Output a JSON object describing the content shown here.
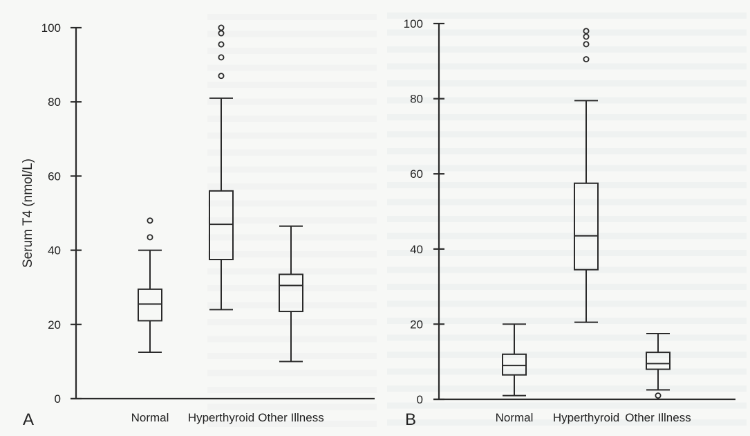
{
  "figure": {
    "background": "#f7f8f6",
    "ink_color": "#2a2a2a"
  },
  "chart_data": [
    {
      "type": "boxplot",
      "panel_label": "A",
      "title": "",
      "xlabel": "",
      "ylabel": "Serum T4 (nmol/L)",
      "ylim": [
        0,
        100
      ],
      "yticks": [
        0,
        20,
        40,
        60,
        80,
        100
      ],
      "grid": false,
      "legend": null,
      "categories": [
        "Normal",
        "Hyperthyroid",
        "Other Illness"
      ],
      "series": [
        {
          "name": "Normal",
          "whisker_low": 12.5,
          "q1": 21,
          "median": 25.5,
          "q3": 29.5,
          "whisker_high": 40,
          "outliers": [
            43.5,
            48
          ]
        },
        {
          "name": "Hyperthyroid",
          "whisker_low": 24,
          "q1": 37.5,
          "median": 47,
          "q3": 56,
          "whisker_high": 81,
          "outliers": [
            87,
            92,
            95.5,
            98.5,
            100
          ]
        },
        {
          "name": "Other Illness",
          "whisker_low": 10,
          "q1": 23.5,
          "median": 30.5,
          "q3": 33.5,
          "whisker_high": 46.5,
          "outliers": []
        }
      ]
    },
    {
      "type": "boxplot",
      "panel_label": "B",
      "title": "",
      "xlabel": "",
      "ylabel": "",
      "ylim": [
        0,
        100
      ],
      "yticks": [
        0,
        20,
        40,
        60,
        80,
        100
      ],
      "grid": false,
      "legend": null,
      "categories": [
        "Normal",
        "Hyperthyroid",
        "Other Illness"
      ],
      "series": [
        {
          "name": "Normal",
          "whisker_low": 1,
          "q1": 6.5,
          "median": 9,
          "q3": 12,
          "whisker_high": 20,
          "outliers": []
        },
        {
          "name": "Hyperthyroid",
          "whisker_low": 20.5,
          "q1": 34.5,
          "median": 43.5,
          "q3": 57.5,
          "whisker_high": 79.5,
          "outliers": [
            90.5,
            94.5,
            96.5,
            98
          ]
        },
        {
          "name": "Other Illness",
          "whisker_low": 2.5,
          "q1": 8,
          "median": 9.5,
          "q3": 12.5,
          "whisker_high": 17.5,
          "outliers": [
            1
          ]
        }
      ]
    }
  ]
}
